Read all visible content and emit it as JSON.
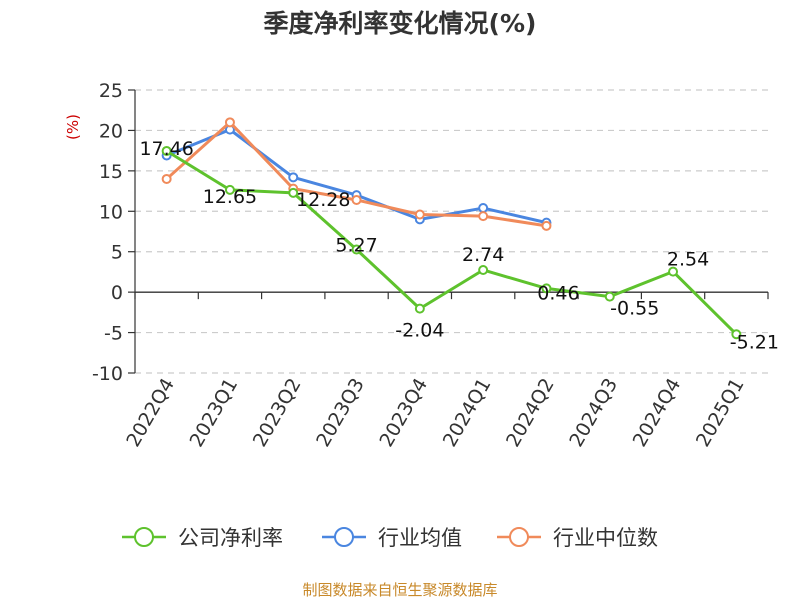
{
  "chart_data": {
    "type": "line",
    "title": "季度净利率变化情况(%)",
    "ylabel": "(%)",
    "xlabel": "",
    "categories": [
      "2022Q4",
      "2023Q1",
      "2023Q2",
      "2023Q3",
      "2023Q4",
      "2024Q1",
      "2024Q2",
      "2024Q3",
      "2024Q4",
      "2025Q1"
    ],
    "ylim": [
      -10,
      25
    ],
    "yticks": [
      -10,
      -5,
      0,
      5,
      10,
      15,
      20,
      25
    ],
    "grid": true,
    "legend_position": "bottom",
    "series": [
      {
        "name": "公司净利率",
        "color": "#5ec22d",
        "values": [
          17.46,
          12.65,
          12.28,
          5.27,
          -2.04,
          2.74,
          0.46,
          -0.55,
          2.54,
          -5.21
        ],
        "labels": [
          "17.46",
          "12.65",
          "12.28",
          "5.27",
          "-2.04",
          "2.74",
          "0.46",
          "-0.55",
          "2.54",
          "-5.21"
        ]
      },
      {
        "name": "行业均值",
        "color": "#4a86e0",
        "values": [
          16.9,
          20.1,
          14.2,
          12.0,
          9.0,
          10.4,
          8.6,
          null,
          null,
          null
        ]
      },
      {
        "name": "行业中位数",
        "color": "#f08a5a",
        "values": [
          14.0,
          21.0,
          12.8,
          11.4,
          9.6,
          9.4,
          8.2,
          null,
          null,
          null
        ]
      }
    ],
    "source": "制图数据来自恒生聚源数据库"
  }
}
